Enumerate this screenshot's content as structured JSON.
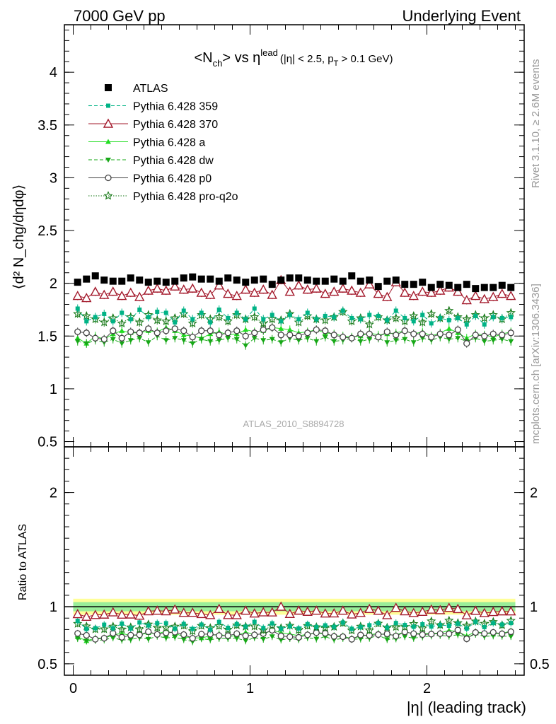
{
  "header": {
    "left": "7000 GeV pp",
    "right": "Underlying Event"
  },
  "side_labels": {
    "top": "Rivet 3.1.10, ≥ 2.6M events",
    "bottom": "mcplots.cern.ch [arXiv:1306.3436]"
  },
  "plot_title": {
    "main": "<N",
    "main_sub": "ch",
    "main_mid": "> vs η",
    "main_sup": "lead",
    "cut": "(|η| < 2.5, p",
    "cut_sub": "T",
    "cut_end": " > 0.1 GeV)"
  },
  "analysis_id": "ATLAS_2010_S8894728",
  "axes": {
    "ylabel_main": "⟨d² N_chg/dηdφ⟩",
    "ylabel_ratio": "Ratio to ATLAS",
    "xlabel": "|η| (leading track)"
  },
  "colors": {
    "ATLAS": "#000000",
    "359": "#00b386",
    "370": "#a3192b",
    "a": "#22dd22",
    "dw": "#17a817",
    "p0": "#444444",
    "pro-q2o": "#1a7a1a",
    "band_outer": "#ffff99",
    "band_inner": "#99ee99"
  },
  "chart_data": [
    {
      "type": "scatter",
      "panel": "main",
      "xlim": [
        -0.05,
        2.55
      ],
      "ylim": [
        0.45,
        4.45
      ],
      "yticks": [
        0.5,
        1,
        1.5,
        2,
        2.5,
        3,
        3.5,
        4
      ],
      "ytick_labels": [
        "0.5",
        "1",
        "1.5",
        "2",
        "2.5",
        "3",
        "3.5",
        "4"
      ],
      "x": [
        0.025,
        0.075,
        0.125,
        0.175,
        0.225,
        0.275,
        0.325,
        0.375,
        0.425,
        0.475,
        0.525,
        0.575,
        0.625,
        0.675,
        0.725,
        0.775,
        0.825,
        0.875,
        0.925,
        0.975,
        1.025,
        1.075,
        1.125,
        1.175,
        1.225,
        1.275,
        1.325,
        1.375,
        1.425,
        1.475,
        1.525,
        1.575,
        1.625,
        1.675,
        1.725,
        1.775,
        1.825,
        1.875,
        1.925,
        1.975,
        2.025,
        2.075,
        2.125,
        2.175,
        2.225,
        2.275,
        2.325,
        2.375,
        2.425,
        2.475
      ],
      "series": [
        {
          "name": "ATLAS",
          "marker": "square",
          "line": "none",
          "values": [
            2.01,
            2.04,
            2.07,
            2.03,
            2.02,
            2.02,
            2.05,
            2.03,
            2.01,
            2.02,
            2.01,
            2.02,
            2.05,
            2.06,
            2.04,
            2.04,
            2.02,
            2.05,
            2.03,
            2.01,
            2.03,
            2.04,
            1.99,
            2.03,
            2.05,
            2.05,
            2.03,
            2.02,
            2.02,
            2.04,
            2.02,
            2.07,
            2.02,
            2.03,
            1.97,
            2.02,
            2.03,
            1.99,
            1.99,
            2.01,
            1.96,
            1.99,
            1.98,
            1.96,
            1.99,
            1.95,
            1.96,
            1.96,
            1.98,
            1.96
          ]
        },
        {
          "name": "Pythia 6.428 359",
          "marker": "small-square",
          "line": "dashed",
          "values": [
            1.76,
            1.64,
            1.68,
            1.71,
            1.64,
            1.72,
            1.66,
            1.75,
            1.68,
            1.73,
            1.72,
            1.63,
            1.74,
            1.66,
            1.72,
            1.63,
            1.75,
            1.67,
            1.72,
            1.66,
            1.76,
            1.66,
            1.7,
            1.64,
            1.7,
            1.66,
            1.72,
            1.66,
            1.69,
            1.68,
            1.74,
            1.67,
            1.66,
            1.7,
            1.69,
            1.65,
            1.74,
            1.67,
            1.64,
            1.7,
            1.62,
            1.67,
            1.65,
            1.67,
            1.61,
            1.69,
            1.61,
            1.68,
            1.67,
            1.68
          ]
        },
        {
          "name": "Pythia 6.428 370",
          "marker": "open-triangle-up",
          "line": "solid",
          "values": [
            1.88,
            1.86,
            1.92,
            1.89,
            1.92,
            1.88,
            1.91,
            1.87,
            1.93,
            1.95,
            1.93,
            1.97,
            1.94,
            1.95,
            1.91,
            1.89,
            1.98,
            1.9,
            1.88,
            1.94,
            1.91,
            1.94,
            1.89,
            2.03,
            1.92,
            1.98,
            1.94,
            1.95,
            1.9,
            1.92,
            1.95,
            1.93,
            1.91,
            1.99,
            1.9,
            1.87,
            2.01,
            1.91,
            1.88,
            1.92,
            1.91,
            1.93,
            1.96,
            1.92,
            1.84,
            1.88,
            1.85,
            1.87,
            1.9,
            1.88
          ]
        },
        {
          "name": "Pythia 6.428 a",
          "marker": "triangle-up",
          "line": "solid",
          "values": [
            1.48,
            1.43,
            1.5,
            1.47,
            1.52,
            1.55,
            1.53,
            1.53,
            1.55,
            1.54,
            1.58,
            1.55,
            1.51,
            1.5,
            1.48,
            1.52,
            1.54,
            1.51,
            1.52,
            1.56,
            1.54,
            1.55,
            1.58,
            1.57,
            1.56,
            1.53,
            1.54,
            1.56,
            1.53,
            1.52,
            1.5,
            1.49,
            1.5,
            1.53,
            1.51,
            1.52,
            1.53,
            1.55,
            1.52,
            1.54,
            1.5,
            1.53,
            1.57,
            1.53,
            1.48,
            1.52,
            1.51,
            1.49,
            1.52,
            1.54
          ]
        },
        {
          "name": "Pythia 6.428 dw",
          "marker": "triangle-down",
          "line": "dashed",
          "values": [
            1.45,
            1.43,
            1.46,
            1.44,
            1.47,
            1.43,
            1.46,
            1.48,
            1.44,
            1.5,
            1.46,
            1.48,
            1.46,
            1.43,
            1.47,
            1.45,
            1.46,
            1.48,
            1.47,
            1.41,
            1.48,
            1.46,
            1.47,
            1.44,
            1.48,
            1.46,
            1.48,
            1.45,
            1.49,
            1.45,
            1.46,
            1.48,
            1.45,
            1.47,
            1.48,
            1.44,
            1.46,
            1.47,
            1.44,
            1.48,
            1.46,
            1.49,
            1.47,
            1.48,
            1.45,
            1.48,
            1.45,
            1.46,
            1.47,
            1.45
          ]
        },
        {
          "name": "Pythia 6.428 p0",
          "marker": "open-circle",
          "line": "solid",
          "values": [
            1.54,
            1.53,
            1.48,
            1.47,
            1.55,
            1.48,
            1.54,
            1.53,
            1.57,
            1.53,
            1.55,
            1.57,
            1.55,
            1.49,
            1.55,
            1.55,
            1.51,
            1.53,
            1.55,
            1.5,
            1.53,
            1.56,
            1.58,
            1.51,
            1.51,
            1.5,
            1.53,
            1.56,
            1.55,
            1.51,
            1.49,
            1.48,
            1.52,
            1.52,
            1.49,
            1.54,
            1.51,
            1.55,
            1.52,
            1.52,
            1.49,
            1.52,
            1.51,
            1.56,
            1.43,
            1.51,
            1.5,
            1.52,
            1.51,
            1.53
          ]
        },
        {
          "name": "Pythia 6.428 pro-q2o",
          "marker": "open-star",
          "line": "dotted",
          "values": [
            1.71,
            1.69,
            1.66,
            1.63,
            1.67,
            1.62,
            1.68,
            1.63,
            1.7,
            1.65,
            1.64,
            1.67,
            1.71,
            1.62,
            1.7,
            1.66,
            1.68,
            1.64,
            1.7,
            1.66,
            1.68,
            1.62,
            1.66,
            1.65,
            1.71,
            1.63,
            1.69,
            1.66,
            1.65,
            1.68,
            1.73,
            1.64,
            1.67,
            1.61,
            1.68,
            1.65,
            1.67,
            1.64,
            1.69,
            1.63,
            1.71,
            1.67,
            1.74,
            1.68,
            1.66,
            1.7,
            1.67,
            1.7,
            1.66,
            1.72
          ]
        }
      ]
    },
    {
      "type": "scatter",
      "panel": "ratio",
      "xlim": [
        -0.05,
        2.55
      ],
      "ylim": [
        0.4,
        2.4
      ],
      "yticks": [
        0.5,
        1,
        2
      ],
      "ytick_labels": [
        "0.5",
        "1",
        "2"
      ],
      "xticks": [
        0,
        1,
        2
      ],
      "xtick_labels": [
        "0",
        "1",
        "2"
      ],
      "reference": 1,
      "uncertainty_band": {
        "outer_halfwidth": 0.07,
        "inner_halfwidth": 0.04
      },
      "note": "ratio = model / ATLAS per bin, same x and series as the main panel"
    }
  ]
}
